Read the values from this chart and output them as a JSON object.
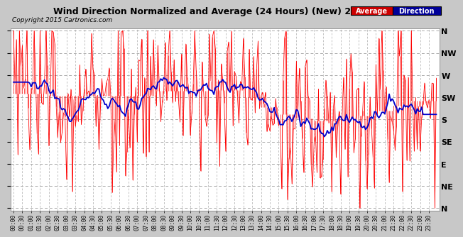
{
  "title": "Wind Direction Normalized and Average (24 Hours) (New) 20151020",
  "copyright": "Copyright 2015 Cartronics.com",
  "fig_bg_color": "#c8c8c8",
  "plot_bg_color": "#ffffff",
  "grid_color": "#aaaaaa",
  "ytick_labels": [
    "N",
    "NW",
    "W",
    "SW",
    "S",
    "SE",
    "E",
    "NE",
    "N"
  ],
  "ytick_values": [
    360,
    315,
    270,
    225,
    180,
    135,
    90,
    45,
    0
  ],
  "ylim_min": 0,
  "ylim_max": 360,
  "n_points": 288,
  "raw_color": "#ff0000",
  "avg_color": "#0000cc",
  "raw_linewidth": 0.5,
  "avg_linewidth": 1.3,
  "legend_red_bg": "#cc0000",
  "legend_blue_bg": "#000099",
  "tick_every_n": 6,
  "xlabel_fontsize": 5.5,
  "ylabel_fontsize": 8
}
